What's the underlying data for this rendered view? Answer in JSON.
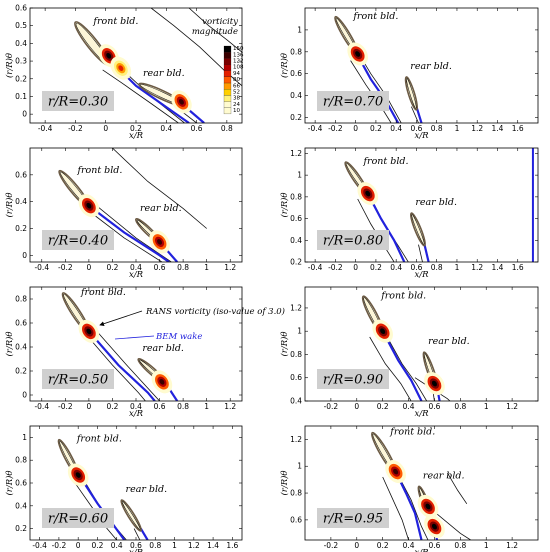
{
  "chart_data": [
    {
      "type": "contour",
      "section_label": "r/R=0.30",
      "xlabel": "x/R",
      "ylabel": "(r/R)θ",
      "xlim": [
        -0.5,
        0.9
      ],
      "ylim": [
        -0.05,
        0.6
      ],
      "xticks": [
        -0.4,
        -0.2,
        0,
        0.2,
        0.4,
        0.6,
        0.8
      ],
      "yticks": [
        0,
        0.1,
        0.2,
        0.3,
        0.4,
        0.5,
        0.6
      ],
      "front_blade": {
        "label": "front bld.",
        "le": [
          -0.2,
          0.52
        ],
        "te": [
          0.02,
          0.28
        ],
        "width": 0.07
      },
      "rear_blade": {
        "label": "rear bld.",
        "le": [
          0.22,
          0.17
        ],
        "te": [
          0.52,
          0.05
        ],
        "width": 0.055
      },
      "bem_wake": [
        [
          0.0,
          0.33
        ],
        [
          0.2,
          0.16
        ],
        [
          0.4,
          0.04
        ],
        [
          0.55,
          -0.05
        ]
      ],
      "bem_wake_rear": [
        [
          0.5,
          0.06
        ],
        [
          0.65,
          -0.05
        ]
      ],
      "rans_contours": [
        [
          [
            0.3,
            0.6
          ],
          [
            0.45,
            0.5
          ],
          [
            0.62,
            0.38
          ],
          [
            0.78,
            0.25
          ],
          [
            0.9,
            0.16
          ]
        ],
        [
          [
            0.55,
            0.6
          ],
          [
            0.68,
            0.5
          ],
          [
            0.8,
            0.42
          ],
          [
            0.9,
            0.35
          ]
        ],
        [
          [
            -0.02,
            0.25
          ],
          [
            0.1,
            0.18
          ],
          [
            0.3,
            0.06
          ],
          [
            0.48,
            -0.05
          ]
        ],
        [
          [
            0.05,
            0.3
          ],
          [
            0.3,
            0.1
          ],
          [
            0.52,
            -0.05
          ]
        ],
        [
          [
            0.45,
            0.05
          ],
          [
            0.6,
            -0.05
          ]
        ]
      ],
      "hot_spots": [
        {
          "x": 0.02,
          "y": 0.33,
          "value": 150
        },
        {
          "x": 0.1,
          "y": 0.26,
          "value": 80
        },
        {
          "x": 0.5,
          "y": 0.07,
          "value": 140
        }
      ],
      "colorbar": {
        "title": [
          "vorticity",
          "magnitude"
        ],
        "levels": [
          150,
          136,
          122,
          108,
          94,
          80,
          66,
          52,
          38,
          24,
          10
        ]
      }
    },
    {
      "type": "contour",
      "section_label": "r/R=0.70",
      "xlabel": "x/R",
      "ylabel": "(r/R)θ",
      "xlim": [
        -0.5,
        1.8
      ],
      "ylim": [
        0.15,
        1.2
      ],
      "xticks": [
        -0.4,
        -0.2,
        0,
        0.2,
        0.4,
        0.6,
        0.8,
        1,
        1.2,
        1.4,
        1.6
      ],
      "yticks": [
        0.2,
        0.4,
        0.6,
        0.8,
        1
      ],
      "front_blade": {
        "label": "front bld.",
        "le": [
          -0.2,
          1.12
        ],
        "te": [
          0.02,
          0.78
        ],
        "width": 0.07
      },
      "rear_blade": {
        "label": "rear bld.",
        "le": [
          0.5,
          0.57
        ],
        "te": [
          0.6,
          0.27
        ],
        "width": 0.055
      },
      "bem_wake": [
        [
          0.0,
          0.8
        ],
        [
          0.15,
          0.55
        ],
        [
          0.3,
          0.35
        ],
        [
          0.42,
          0.15
        ]
      ],
      "bem_wake_rear": [
        [
          0.6,
          0.3
        ],
        [
          0.65,
          0.15
        ]
      ],
      "rans_contours": [
        [
          [
            -0.05,
            0.72
          ],
          [
            0.1,
            0.5
          ],
          [
            0.25,
            0.3
          ],
          [
            0.35,
            0.15
          ]
        ],
        [
          [
            0.02,
            0.8
          ],
          [
            0.15,
            0.6
          ],
          [
            0.3,
            0.4
          ],
          [
            0.45,
            0.15
          ]
        ],
        [
          [
            0.55,
            0.3
          ],
          [
            0.62,
            0.15
          ]
        ]
      ],
      "hot_spots": [
        {
          "x": 0.02,
          "y": 0.78,
          "value": 150
        }
      ]
    },
    {
      "type": "contour",
      "section_label": "r/R=0.40",
      "xlabel": "x/R",
      "ylabel": "(r/R)θ",
      "xlim": [
        -0.5,
        1.3
      ],
      "ylim": [
        -0.05,
        0.8
      ],
      "xticks": [
        -0.4,
        -0.2,
        0,
        0.2,
        0.4,
        0.6,
        0.8,
        1,
        1.2
      ],
      "yticks": [
        0,
        0.2,
        0.4,
        0.6
      ],
      "front_blade": {
        "label": "front bld.",
        "le": [
          -0.25,
          0.63
        ],
        "te": [
          0.0,
          0.36
        ],
        "width": 0.07
      },
      "rear_blade": {
        "label": "rear bld.",
        "le": [
          0.4,
          0.27
        ],
        "te": [
          0.6,
          0.1
        ],
        "width": 0.055
      },
      "bem_wake": [
        [
          0.0,
          0.37
        ],
        [
          0.3,
          0.17
        ],
        [
          0.6,
          0.0
        ],
        [
          0.68,
          -0.05
        ]
      ],
      "bem_wake_rear": [
        [
          0.6,
          0.1
        ],
        [
          0.75,
          -0.05
        ]
      ],
      "rans_contours": [
        [
          [
            0.2,
            0.8
          ],
          [
            0.5,
            0.55
          ],
          [
            0.8,
            0.35
          ],
          [
            1.0,
            0.2
          ]
        ],
        [
          [
            0.0,
            0.33
          ],
          [
            0.3,
            0.13
          ],
          [
            0.62,
            -0.05
          ]
        ],
        [
          [
            0.05,
            0.38
          ],
          [
            0.4,
            0.13
          ],
          [
            0.7,
            -0.05
          ]
        ]
      ],
      "hot_spots": [
        {
          "x": 0.0,
          "y": 0.37,
          "value": 150
        },
        {
          "x": 0.6,
          "y": 0.1,
          "value": 140
        }
      ]
    },
    {
      "type": "contour",
      "section_label": "r/R=0.80",
      "xlabel": "x/R",
      "ylabel": "(r/R)θ",
      "xlim": [
        -0.5,
        1.8
      ],
      "ylim": [
        0.2,
        1.25
      ],
      "xticks": [
        -0.4,
        -0.2,
        0,
        0.2,
        0.4,
        0.6,
        0.8,
        1,
        1.2,
        1.4,
        1.6
      ],
      "yticks": [
        0.2,
        0.4,
        0.6,
        0.8,
        1,
        1.2
      ],
      "front_blade": {
        "label": "front bld.",
        "le": [
          -0.1,
          1.12
        ],
        "te": [
          0.12,
          0.82
        ],
        "width": 0.07
      },
      "rear_blade": {
        "label": "rear bld.",
        "le": [
          0.55,
          0.65
        ],
        "te": [
          0.68,
          0.35
        ],
        "width": 0.055
      },
      "bem_wake": [
        [
          0.12,
          0.83
        ],
        [
          0.25,
          0.6
        ],
        [
          0.38,
          0.4
        ],
        [
          0.48,
          0.2
        ]
      ],
      "bem_wake_rear": [
        [
          0.68,
          0.36
        ],
        [
          0.72,
          0.2
        ]
      ],
      "rans_contours": [
        [
          [
            0.02,
            0.78
          ],
          [
            0.15,
            0.55
          ],
          [
            0.28,
            0.35
          ],
          [
            0.38,
            0.2
          ]
        ],
        [
          [
            0.12,
            0.85
          ],
          [
            0.28,
            0.55
          ],
          [
            0.42,
            0.35
          ],
          [
            0.52,
            0.2
          ]
        ],
        [
          [
            0.62,
            0.36
          ],
          [
            0.66,
            0.2
          ]
        ]
      ],
      "domain_edge_x": 1.75,
      "hot_spots": [
        {
          "x": 0.12,
          "y": 0.83,
          "value": 150
        }
      ]
    },
    {
      "type": "contour",
      "section_label": "r/R=0.50",
      "xlabel": "x/R",
      "ylabel": "(r/R)θ",
      "xlim": [
        -0.5,
        1.3
      ],
      "ylim": [
        -0.05,
        0.9
      ],
      "xticks": [
        -0.4,
        -0.2,
        0,
        0.2,
        0.4,
        0.6,
        0.8,
        1,
        1.2
      ],
      "yticks": [
        0,
        0.2,
        0.4,
        0.6,
        0.8
      ],
      "front_blade": {
        "label": "front bld.",
        "le": [
          -0.22,
          0.85
        ],
        "te": [
          0.0,
          0.52
        ],
        "width": 0.07
      },
      "rear_blade": {
        "label": "rear bld.",
        "le": [
          0.42,
          0.3
        ],
        "te": [
          0.65,
          0.1
        ],
        "width": 0.055
      },
      "bem_wake": [
        [
          0.0,
          0.53
        ],
        [
          0.25,
          0.25
        ],
        [
          0.5,
          0.02
        ],
        [
          0.56,
          -0.05
        ]
      ],
      "bem_wake_rear": [
        [
          0.65,
          0.1
        ],
        [
          0.75,
          -0.05
        ]
      ],
      "rans_contours": [
        [
          [
            -0.02,
            0.5
          ],
          [
            0.2,
            0.25
          ],
          [
            0.42,
            0.02
          ],
          [
            0.48,
            -0.05
          ]
        ],
        [
          [
            0.05,
            0.55
          ],
          [
            0.32,
            0.25
          ],
          [
            0.6,
            -0.05
          ]
        ]
      ],
      "hot_spots": [
        {
          "x": 0.0,
          "y": 0.53,
          "value": 150
        },
        {
          "x": 0.62,
          "y": 0.11,
          "value": 140
        }
      ],
      "annotations": [
        {
          "text": "RANS vorticity (iso-value of 3.0)",
          "color": "#000000"
        },
        {
          "text": "BEM wake",
          "color": "#2222dd"
        }
      ]
    },
    {
      "type": "contour",
      "section_label": "r/R=0.90",
      "xlabel": "x/R",
      "ylabel": "(r/R)θ",
      "xlim": [
        -0.4,
        1.4
      ],
      "ylim": [
        0.4,
        1.38
      ],
      "xticks": [
        -0.2,
        0,
        0.2,
        0.4,
        0.6,
        0.8,
        1,
        1.2
      ],
      "yticks": [
        0.4,
        0.6,
        0.8,
        1,
        1.2
      ],
      "front_blade": {
        "label": "front bld.",
        "le": [
          0.05,
          1.3
        ],
        "te": [
          0.2,
          0.98
        ],
        "width": 0.06
      },
      "rear_blade": {
        "label": "rear bld.",
        "le": [
          0.52,
          0.82
        ],
        "te": [
          0.62,
          0.5
        ],
        "width": 0.05
      },
      "bem_wake": [
        [
          0.2,
          1.0
        ],
        [
          0.32,
          0.75
        ],
        [
          0.42,
          0.58
        ],
        [
          0.5,
          0.4
        ]
      ],
      "bem_wake_rear": [
        [
          0.62,
          0.52
        ],
        [
          0.64,
          0.4
        ]
      ],
      "rans_contours": [
        [
          [
            0.1,
            0.95
          ],
          [
            0.22,
            0.72
          ],
          [
            0.34,
            0.55
          ],
          [
            0.42,
            0.4
          ]
        ],
        [
          [
            0.2,
            1.02
          ],
          [
            0.35,
            0.72
          ],
          [
            0.46,
            0.55
          ],
          [
            0.54,
            0.4
          ]
        ],
        [
          [
            0.58,
            0.55
          ],
          [
            0.6,
            0.4
          ]
        ],
        [
          [
            0.45,
            0.6
          ],
          [
            0.7,
            0.42
          ],
          [
            0.72,
            0.4
          ]
        ]
      ],
      "hot_spots": [
        {
          "x": 0.2,
          "y": 1.0,
          "value": 150
        },
        {
          "x": 0.6,
          "y": 0.55,
          "value": 150
        }
      ]
    },
    {
      "type": "contour",
      "section_label": "r/R=0.60",
      "xlabel": "x/R",
      "ylabel": "(r/R)θ",
      "xlim": [
        -0.5,
        1.7
      ],
      "ylim": [
        0.1,
        1.1
      ],
      "xticks": [
        -0.4,
        -0.2,
        0,
        0.2,
        0.4,
        0.6,
        0.8,
        1,
        1.2,
        1.4,
        1.6
      ],
      "yticks": [
        0.2,
        0.4,
        0.6,
        0.8,
        1
      ],
      "front_blade": {
        "label": "front bld.",
        "le": [
          -0.2,
          0.98
        ],
        "te": [
          0.0,
          0.66
        ],
        "width": 0.07
      },
      "rear_blade": {
        "label": "rear bld.",
        "le": [
          0.45,
          0.45
        ],
        "te": [
          0.65,
          0.18
        ],
        "width": 0.055
      },
      "bem_wake": [
        [
          0.0,
          0.68
        ],
        [
          0.2,
          0.42
        ],
        [
          0.35,
          0.25
        ],
        [
          0.48,
          0.1
        ]
      ],
      "bem_wake_rear": [
        [
          0.65,
          0.2
        ],
        [
          0.72,
          0.1
        ]
      ],
      "rans_contours": [
        [
          [
            -0.05,
            0.62
          ],
          [
            0.15,
            0.38
          ],
          [
            0.3,
            0.2
          ],
          [
            0.4,
            0.1
          ]
        ],
        [
          [
            0.02,
            0.68
          ],
          [
            0.22,
            0.4
          ],
          [
            0.4,
            0.2
          ],
          [
            0.5,
            0.1
          ]
        ],
        [
          [
            0.58,
            0.2
          ],
          [
            0.64,
            0.1
          ]
        ]
      ],
      "hot_spots": [
        {
          "x": 0.0,
          "y": 0.67,
          "value": 150
        }
      ]
    },
    {
      "type": "contour",
      "section_label": "r/R=0.95",
      "xlabel": "x/R",
      "ylabel": "(r/R)θ",
      "xlim": [
        -0.4,
        1.4
      ],
      "ylim": [
        0.45,
        1.3
      ],
      "xticks": [
        -0.2,
        0,
        0.2,
        0.4,
        0.6,
        0.8,
        1,
        1.2
      ],
      "yticks": [
        0.6,
        0.8,
        1,
        1.2
      ],
      "front_blade": {
        "label": "front bld.",
        "le": [
          0.12,
          1.25
        ],
        "te": [
          0.3,
          0.95
        ],
        "width": 0.06
      },
      "rear_blade": {
        "label": "rear bld.",
        "le": [
          0.48,
          0.85
        ],
        "te": [
          0.6,
          0.55
        ],
        "width": 0.05
      },
      "bem_wake": [
        [
          0.3,
          0.96
        ],
        [
          0.38,
          0.8
        ],
        [
          0.45,
          0.65
        ],
        [
          0.5,
          0.45
        ]
      ],
      "bem_wake_rear": [
        [
          0.6,
          0.56
        ],
        [
          0.62,
          0.45
        ]
      ],
      "rans_contours": [
        [
          [
            0.2,
            0.92
          ],
          [
            0.28,
            0.75
          ],
          [
            0.35,
            0.6
          ],
          [
            0.4,
            0.45
          ]
        ],
        [
          [
            0.3,
            0.97
          ],
          [
            0.42,
            0.75
          ],
          [
            0.5,
            0.55
          ],
          [
            0.55,
            0.45
          ]
        ],
        [
          [
            0.7,
            0.95
          ],
          [
            0.78,
            0.82
          ],
          [
            0.85,
            0.72
          ]
        ],
        [
          [
            0.55,
            0.7
          ],
          [
            0.8,
            0.5
          ],
          [
            0.88,
            0.45
          ]
        ]
      ],
      "hot_spots": [
        {
          "x": 0.3,
          "y": 0.96,
          "value": 140
        },
        {
          "x": 0.55,
          "y": 0.7,
          "value": 150
        },
        {
          "x": 0.6,
          "y": 0.55,
          "value": 150
        }
      ]
    }
  ],
  "colors": {
    "blade_outline": "#6b5a44",
    "bem_wake": "#2222dd",
    "rans_contour": "#111111",
    "label_box": "#cfcfcf"
  },
  "colormap": [
    "#fffbd0",
    "#fff27a",
    "#ffd000",
    "#ff9a00",
    "#ff5a00",
    "#e32000",
    "#b10000",
    "#7a0000",
    "#3a0000",
    "#000000"
  ]
}
